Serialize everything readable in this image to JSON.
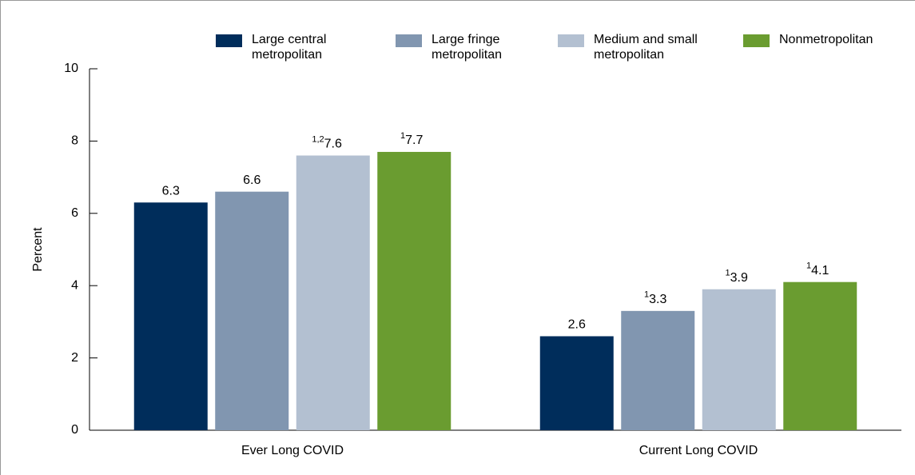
{
  "chart_data": {
    "type": "bar",
    "categories": [
      "Ever Long COVID",
      "Current Long COVID"
    ],
    "series": [
      {
        "name": "Large central metropolitan",
        "color": "#002d5b",
        "values": [
          6.3,
          2.6
        ],
        "superscripts": [
          null,
          null
        ]
      },
      {
        "name": "Large fringe metropolitan",
        "color": "#8196b0",
        "values": [
          6.6,
          3.3
        ],
        "superscripts": [
          null,
          "1"
        ]
      },
      {
        "name": "Medium and small metropolitan",
        "color": "#b3c0d1",
        "values": [
          7.6,
          3.9
        ],
        "superscripts": [
          "1,2",
          "1"
        ]
      },
      {
        "name": "Nonmetropolitan",
        "color": "#6a9c30",
        "values": [
          7.7,
          4.1
        ],
        "superscripts": [
          "1",
          "1"
        ]
      }
    ],
    "y_label": "Percent",
    "ylim": [
      0,
      10
    ],
    "yticks": [
      0,
      2,
      4,
      6,
      8,
      10
    ],
    "grid": false
  }
}
